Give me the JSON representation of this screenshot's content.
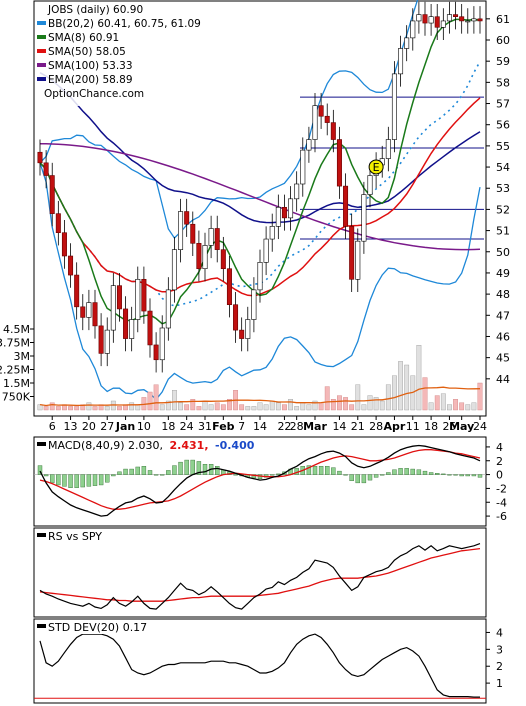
{
  "chart_data": [
    {
      "type": "candlestick",
      "ticker_label": "JOBS (daily) 60.90",
      "watermark": "OptionChance.com",
      "legend": [
        {
          "label": "BB(20,2) 60.41, 60.75, 61.09",
          "color": "#1e88d8"
        },
        {
          "label": "SMA(8) 60.91",
          "color": "#1a7a1a"
        },
        {
          "label": "SMA(50) 58.05",
          "color": "#e01010"
        },
        {
          "label": "SMA(100) 53.33",
          "color": "#7a1a8a"
        },
        {
          "label": "EMA(200) 58.89",
          "color": "#10108a"
        }
      ],
      "ylim": [
        43,
        61.7
      ],
      "y_ticks": [
        44,
        45,
        46,
        47,
        48,
        49,
        50,
        51,
        52,
        53,
        54,
        55,
        56,
        57,
        58,
        59,
        60,
        61
      ],
      "horizontal_levels": [
        57.3,
        54.9,
        52.0,
        50.6
      ],
      "earnings_marker": {
        "label": "E",
        "index": 55
      },
      "x_labels": [
        "6",
        "13",
        "20",
        "27",
        "Jan",
        "10",
        "18",
        "24",
        "31",
        "Feb",
        "7",
        "14",
        "22",
        "28",
        "Mar",
        "14",
        "21",
        "28",
        "Apr",
        "11",
        "18",
        "25",
        "May",
        "24"
      ],
      "close": [
        54.2,
        53.6,
        51.8,
        50.9,
        49.8,
        48.9,
        47.4,
        46.9,
        47.6,
        46.5,
        45.2,
        46.3,
        48.4,
        47.3,
        45.9,
        46.8,
        48.7,
        47.2,
        45.6,
        44.9,
        46.4,
        48.2,
        50.1,
        51.9,
        51.3,
        50.4,
        49.2,
        50.3,
        51.1,
        50.1,
        49.2,
        47.5,
        46.3,
        45.9,
        46.8,
        48.2,
        49.5,
        50.6,
        51.2,
        52.1,
        51.6,
        52.5,
        53.2,
        54.8,
        55.3,
        56.9,
        56.4,
        56.1,
        55.3,
        53.1,
        51.2,
        48.7,
        50.5,
        52.7,
        53.6,
        54.1,
        54.4,
        55.3,
        58.4,
        59.6,
        60.1,
        60.9,
        61.2,
        60.8,
        61.1,
        60.6,
        60.9,
        61.2,
        61.1,
        60.9,
        60.9,
        61.0,
        60.9
      ],
      "volume_axis_labels": [
        "4.5M",
        "3.75M",
        "3M",
        "2.25M",
        "1.5M",
        "750K"
      ],
      "volume_ylim": [
        0,
        5
      ],
      "volume_millions": [
        0.3,
        0.2,
        0.4,
        0.2,
        0.3,
        0.2,
        0.2,
        0.3,
        0.4,
        0.2,
        0.3,
        0.2,
        0.5,
        0.2,
        0.3,
        0.4,
        0.3,
        0.7,
        1.0,
        1.4,
        0.3,
        0.5,
        1.1,
        0.4,
        0.3,
        0.6,
        0.2,
        0.5,
        0.3,
        0.4,
        0.3,
        0.6,
        1.1,
        0.3,
        0.2,
        0.2,
        0.4,
        0.3,
        0.5,
        0.4,
        0.3,
        0.6,
        0.2,
        0.4,
        0.3,
        0.5,
        0.4,
        1.3,
        0.6,
        0.8,
        0.7,
        0.3,
        1.4,
        0.3,
        0.8,
        0.7,
        0.5,
        1.4,
        1.9,
        2.7,
        2.5,
        1.9,
        3.6,
        1.8,
        0.4,
        0.8,
        0.9,
        0.3,
        0.6,
        0.4,
        0.3,
        0.4,
        1.5
      ],
      "volume_average_color": "#e06010"
    },
    {
      "type": "line",
      "title": "MACD(8,40,9) 2.030, 2.431, -0.400",
      "title_parts": [
        "MACD(8,40,9) 2.030,",
        "2.431,",
        "-0.400"
      ],
      "title_colors": [
        "#000000",
        "#e01010",
        "#1a4ac8"
      ],
      "ylim": [
        -7,
        5
      ],
      "y_ticks": [
        4,
        2,
        0,
        -2,
        -4,
        -6
      ],
      "macd": [
        0.5,
        -1.2,
        -2.5,
        -3.2,
        -3.8,
        -4.4,
        -4.8,
        -5.1,
        -5.4,
        -5.7,
        -6.0,
        -5.9,
        -5.2,
        -4.6,
        -4.1,
        -3.9,
        -3.4,
        -3.1,
        -3.5,
        -4.1,
        -4.0,
        -3.2,
        -2.2,
        -1.3,
        -0.5,
        0.0,
        0.3,
        0.4,
        0.8,
        0.9,
        0.7,
        0.5,
        0.2,
        -0.1,
        -0.4,
        -0.6,
        -0.8,
        -0.7,
        -0.4,
        -0.2,
        0.2,
        0.8,
        1.2,
        1.8,
        2.3,
        2.6,
        3.0,
        3.3,
        3.4,
        3.1,
        2.6,
        1.7,
        1.2,
        1.0,
        1.2,
        1.6,
        2.0,
        2.5,
        3.1,
        3.6,
        3.9,
        4.1,
        4.2,
        4.1,
        3.9,
        3.7,
        3.5,
        3.3,
        3.0,
        2.8,
        2.6,
        2.4,
        2.0
      ],
      "signal": [
        -0.8,
        -1.0,
        -1.3,
        -1.7,
        -2.1,
        -2.5,
        -2.9,
        -3.3,
        -3.7,
        -4.1,
        -4.5,
        -4.8,
        -5.0,
        -5.0,
        -4.9,
        -4.7,
        -4.5,
        -4.3,
        -4.1,
        -4.0,
        -3.9,
        -3.8,
        -3.5,
        -3.1,
        -2.6,
        -2.1,
        -1.6,
        -1.1,
        -0.7,
        -0.3,
        0.0,
        0.1,
        0.2,
        0.1,
        0.0,
        -0.1,
        -0.2,
        -0.3,
        -0.3,
        -0.3,
        -0.2,
        0.0,
        0.3,
        0.6,
        1.0,
        1.4,
        1.8,
        2.1,
        2.4,
        2.6,
        2.7,
        2.6,
        2.4,
        2.2,
        2.0,
        2.0,
        2.1,
        2.2,
        2.4,
        2.7,
        3.0,
        3.3,
        3.5,
        3.6,
        3.6,
        3.5,
        3.4,
        3.3,
        3.1,
        3.0,
        2.8,
        2.6,
        2.4
      ]
    },
    {
      "type": "line",
      "title": "RS vs SPY",
      "ylim": [
        0,
        1
      ],
      "rs": [
        0.3,
        0.25,
        0.22,
        0.18,
        0.15,
        0.12,
        0.1,
        0.08,
        0.12,
        0.07,
        0.05,
        0.1,
        0.2,
        0.12,
        0.08,
        0.14,
        0.22,
        0.12,
        0.05,
        0.04,
        0.12,
        0.2,
        0.3,
        0.4,
        0.32,
        0.3,
        0.24,
        0.28,
        0.35,
        0.28,
        0.2,
        0.12,
        0.06,
        0.04,
        0.12,
        0.2,
        0.25,
        0.32,
        0.34,
        0.42,
        0.38,
        0.44,
        0.48,
        0.55,
        0.6,
        0.72,
        0.7,
        0.68,
        0.62,
        0.5,
        0.4,
        0.3,
        0.35,
        0.48,
        0.52,
        0.56,
        0.58,
        0.62,
        0.72,
        0.78,
        0.82,
        0.88,
        0.92,
        0.86,
        0.92,
        0.85,
        0.88,
        0.92,
        0.9,
        0.88,
        0.9,
        0.92,
        0.95
      ],
      "rs_average": [
        0.28,
        0.27,
        0.26,
        0.25,
        0.24,
        0.23,
        0.22,
        0.21,
        0.2,
        0.19,
        0.18,
        0.17,
        0.17,
        0.16,
        0.16,
        0.15,
        0.15,
        0.15,
        0.15,
        0.15,
        0.15,
        0.16,
        0.17,
        0.18,
        0.19,
        0.2,
        0.2,
        0.21,
        0.22,
        0.22,
        0.22,
        0.22,
        0.22,
        0.22,
        0.22,
        0.22,
        0.23,
        0.24,
        0.25,
        0.26,
        0.28,
        0.3,
        0.32,
        0.34,
        0.36,
        0.39,
        0.42,
        0.44,
        0.46,
        0.47,
        0.47,
        0.47,
        0.47,
        0.48,
        0.49,
        0.5,
        0.52,
        0.54,
        0.57,
        0.6,
        0.63,
        0.66,
        0.69,
        0.72,
        0.75,
        0.77,
        0.79,
        0.81,
        0.83,
        0.85,
        0.86,
        0.87,
        0.88
      ]
    },
    {
      "type": "line",
      "title": "STD DEV(20) 0.17",
      "ylim": [
        0,
        4.5
      ],
      "y_ticks": [
        4,
        3,
        2,
        1
      ],
      "std": [
        3.5,
        2.2,
        2.0,
        2.3,
        2.8,
        3.3,
        3.7,
        3.9,
        3.9,
        3.9,
        3.9,
        3.8,
        3.6,
        3.2,
        2.5,
        1.8,
        1.6,
        1.5,
        1.6,
        1.8,
        2.0,
        2.1,
        2.1,
        2.2,
        2.2,
        2.2,
        2.2,
        2.2,
        2.3,
        2.3,
        2.3,
        2.2,
        2.2,
        2.1,
        2.0,
        1.8,
        1.6,
        1.6,
        1.7,
        1.9,
        2.2,
        2.8,
        3.3,
        3.6,
        3.8,
        3.9,
        3.7,
        3.3,
        2.8,
        2.2,
        1.8,
        1.5,
        1.4,
        1.5,
        1.8,
        2.1,
        2.4,
        2.6,
        2.8,
        3.0,
        3.1,
        2.9,
        2.6,
        2.0,
        1.3,
        0.6,
        0.3,
        0.2,
        0.2,
        0.2,
        0.2,
        0.17,
        0.17
      ]
    }
  ]
}
